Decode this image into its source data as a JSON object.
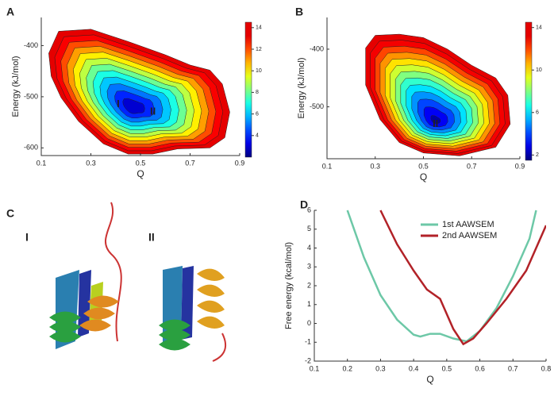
{
  "chart_data": [
    {
      "type": "contour",
      "panel": "A",
      "xlabel": "Q",
      "ylabel": "Energy (kJ/mol)",
      "xlim": [
        0.1,
        0.9
      ],
      "xticks": [
        0.1,
        0.3,
        0.5,
        0.7,
        0.9
      ],
      "ylim": [
        -615,
        -345
      ],
      "yticks": [
        -400,
        -500,
        -600
      ],
      "zlim": [
        2,
        14.5
      ],
      "zticks": [
        4,
        6,
        8,
        10,
        12,
        14
      ],
      "levels": [
        3,
        4,
        5,
        6,
        7,
        8,
        9,
        10,
        11,
        12,
        13,
        14
      ],
      "center": [
        0.47,
        -522
      ],
      "outline": [
        [
          0.13,
          -415
        ],
        [
          0.17,
          -372
        ],
        [
          0.3,
          -368
        ],
        [
          0.45,
          -392
        ],
        [
          0.6,
          -418
        ],
        [
          0.7,
          -438
        ],
        [
          0.78,
          -448
        ],
        [
          0.83,
          -475
        ],
        [
          0.86,
          -530
        ],
        [
          0.84,
          -580
        ],
        [
          0.78,
          -600
        ],
        [
          0.65,
          -602
        ],
        [
          0.55,
          -612
        ],
        [
          0.45,
          -612
        ],
        [
          0.35,
          -592
        ],
        [
          0.25,
          -548
        ],
        [
          0.18,
          -502
        ],
        [
          0.14,
          -460
        ]
      ],
      "annotations": [
        {
          "label": "I",
          "x": 0.41,
          "y": -515
        },
        {
          "label": "II",
          "x": 0.55,
          "y": -530
        }
      ]
    },
    {
      "type": "contour",
      "panel": "B",
      "xlabel": "Q",
      "ylabel": "Energy (kJ/mol)",
      "xlim": [
        0.1,
        0.9
      ],
      "xticks": [
        0.1,
        0.3,
        0.5,
        0.7,
        0.9
      ],
      "ylim": [
        -590,
        -345
      ],
      "yticks": [
        -400,
        -500
      ],
      "zlim": [
        1.5,
        14.5
      ],
      "zticks": [
        2,
        6,
        10,
        14
      ],
      "levels": [
        2,
        3,
        4,
        5,
        6,
        7,
        8,
        9,
        10,
        11,
        12,
        13,
        14
      ],
      "center": [
        0.55,
        -525
      ],
      "outline": [
        [
          0.26,
          -398
        ],
        [
          0.3,
          -376
        ],
        [
          0.4,
          -374
        ],
        [
          0.5,
          -380
        ],
        [
          0.6,
          -400
        ],
        [
          0.7,
          -428
        ],
        [
          0.8,
          -450
        ],
        [
          0.85,
          -480
        ],
        [
          0.86,
          -530
        ],
        [
          0.8,
          -570
        ],
        [
          0.65,
          -585
        ],
        [
          0.5,
          -580
        ],
        [
          0.4,
          -562
        ],
        [
          0.32,
          -522
        ],
        [
          0.26,
          -462
        ]
      ],
      "annotations": [
        {
          "label": "II",
          "x": 0.55,
          "y": -530
        }
      ]
    },
    {
      "type": "line",
      "panel": "D",
      "xlabel": "Q",
      "ylabel": "Free energy (kcal/mol)",
      "xlim": [
        0.1,
        0.8
      ],
      "xticks": [
        0.1,
        0.2,
        0.3,
        0.4,
        0.5,
        0.6,
        0.7,
        0.8
      ],
      "ylim": [
        -2,
        6
      ],
      "yticks": [
        -2,
        -1,
        0,
        1,
        2,
        3,
        4,
        5,
        6
      ],
      "legend": "upper right",
      "series": [
        {
          "name": "1st AAWSEM",
          "color": "#6dc8a7",
          "x": [
            0.2,
            0.25,
            0.3,
            0.35,
            0.4,
            0.42,
            0.45,
            0.48,
            0.52,
            0.56,
            0.6,
            0.65,
            0.7,
            0.75,
            0.77
          ],
          "values": [
            6,
            3.5,
            1.5,
            0.2,
            -0.6,
            -0.7,
            -0.55,
            -0.55,
            -0.8,
            -0.95,
            -0.4,
            0.8,
            2.5,
            4.5,
            6
          ]
        },
        {
          "name": "2nd AAWSEM",
          "color": "#b22228",
          "x": [
            0.3,
            0.35,
            0.4,
            0.44,
            0.48,
            0.52,
            0.55,
            0.58,
            0.62,
            0.68,
            0.74,
            0.8
          ],
          "values": [
            6,
            4.2,
            2.8,
            1.8,
            1.3,
            -0.3,
            -1.1,
            -0.8,
            0,
            1.3,
            2.8,
            5.2
          ]
        }
      ]
    }
  ],
  "illustration": {
    "panel": "C",
    "labels": [
      "I",
      "II"
    ]
  }
}
